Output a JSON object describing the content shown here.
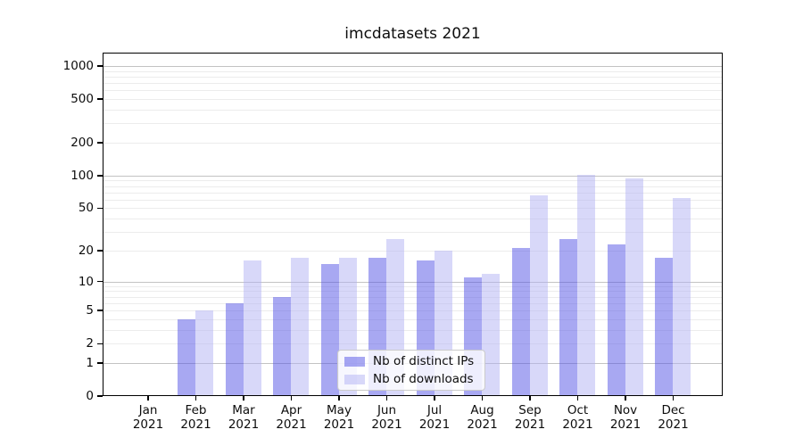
{
  "chart_data": {
    "type": "bar",
    "title": "imcdatasets 2021",
    "categories": [
      "Jan 2021",
      "Feb 2021",
      "Mar 2021",
      "Apr 2021",
      "May 2021",
      "Jun 2021",
      "Jul 2021",
      "Aug 2021",
      "Sep 2021",
      "Oct 2021",
      "Nov 2021",
      "Dec 2021"
    ],
    "series": [
      {
        "name": "Nb of distinct IPs",
        "color": "rgba(81,81,229,0.5)",
        "values": [
          0,
          4,
          6,
          7,
          15,
          17,
          16,
          11,
          21,
          26,
          23,
          17
        ]
      },
      {
        "name": "Nb of downloads",
        "color": "rgba(177,177,243,0.5)",
        "values": [
          0,
          5,
          16,
          17,
          17,
          26,
          20,
          12,
          66,
          101,
          95,
          62
        ]
      }
    ],
    "y_ticks": [
      0,
      1,
      2,
      5,
      10,
      20,
      50,
      100,
      200,
      500,
      1000
    ],
    "y_scale": "log10(1+v)",
    "ylim": [
      0,
      1320
    ],
    "xlabel": "",
    "ylabel": "",
    "grid": true,
    "legend_position": "lower center"
  },
  "colors": {
    "major_grid": "#c3c3c3",
    "minor_grid": "#ececec",
    "axis": "#000000",
    "title_text": "#0d0d0d",
    "legend_border": "#cbcbcb",
    "legend_bg": "rgba(255,255,255,0.8)"
  }
}
